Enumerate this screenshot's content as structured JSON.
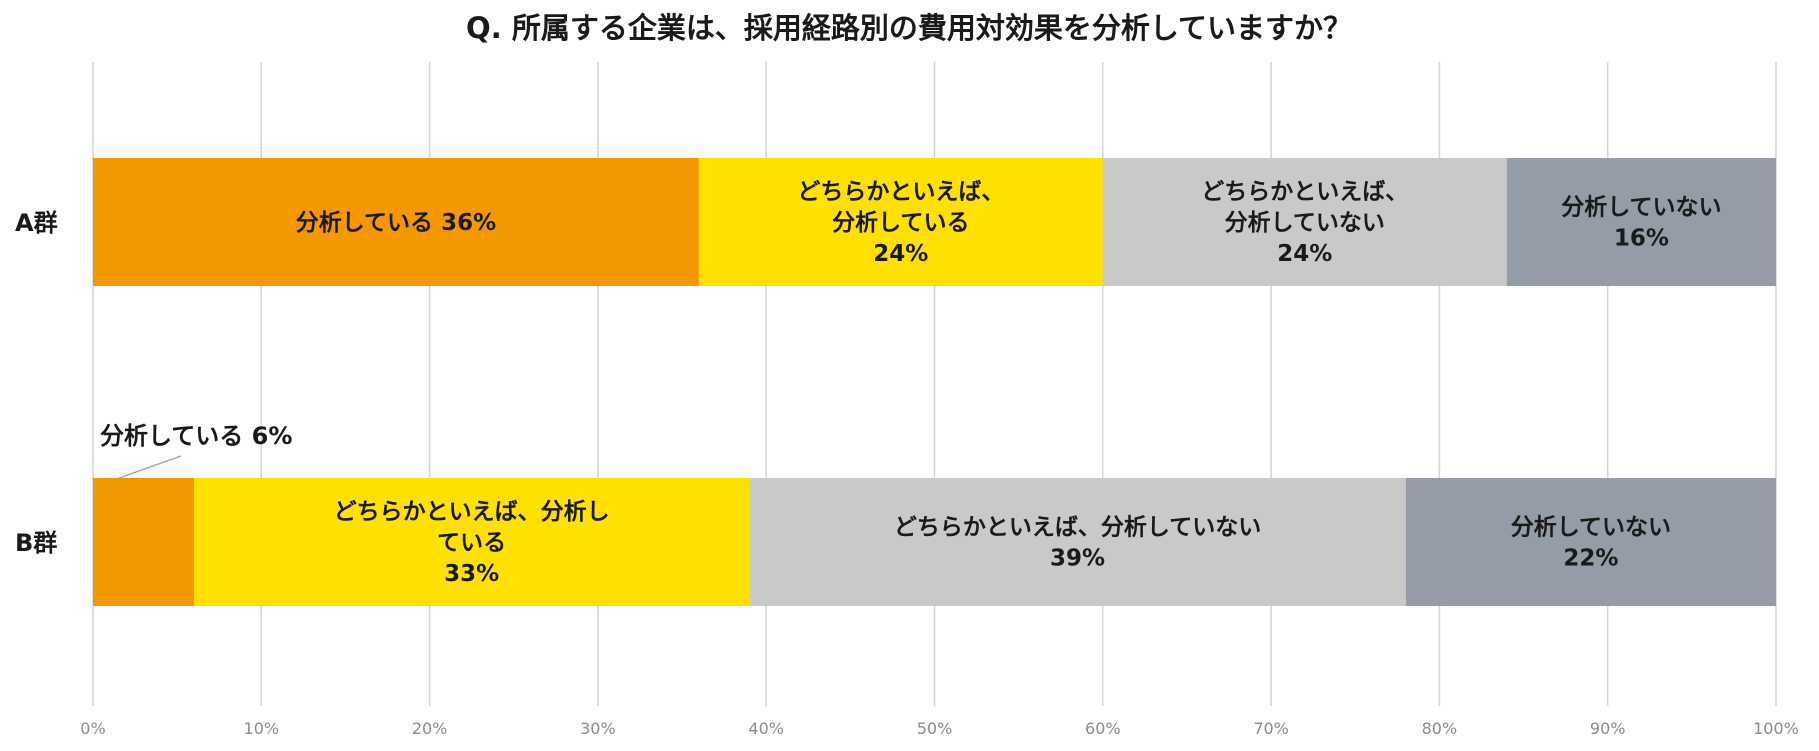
{
  "chart_data": {
    "type": "bar",
    "orientation": "horizontal",
    "stacked": true,
    "title": "Q. 所属する企業は、採用経路別の費用対効果を分析していますか？",
    "categories": [
      "A群",
      "B群"
    ],
    "xlim": [
      0,
      100
    ],
    "x_ticks": [
      "0%",
      "10%",
      "20%",
      "30%",
      "40%",
      "50%",
      "60%",
      "70%",
      "80%",
      "90%",
      "100%"
    ],
    "grid": "vertical",
    "legend": "none",
    "series": [
      {
        "values": [
          36,
          6
        ],
        "color": "#F39800",
        "labels": [
          [
            "分析している  36%"
          ],
          [
            "分析している  6%"
          ]
        ]
      },
      {
        "values": [
          24,
          33
        ],
        "color": "#FFE100",
        "labels": [
          [
            "どちらかといえば、",
            "分析している",
            "24%"
          ],
          [
            "どちらかといえば、分析し",
            "ている",
            "33%"
          ]
        ]
      },
      {
        "values": [
          24,
          39
        ],
        "color": "#C9C9C9",
        "labels": [
          [
            "どちらかといえば、",
            "分析していない",
            "24%"
          ],
          [
            "どちらかといえば、分析していない",
            "39%"
          ]
        ]
      },
      {
        "values": [
          16,
          22
        ],
        "color": "#939CA7",
        "labels": [
          [
            "分析していない",
            "16%"
          ],
          [
            "分析していない",
            "22%"
          ]
        ]
      }
    ]
  }
}
